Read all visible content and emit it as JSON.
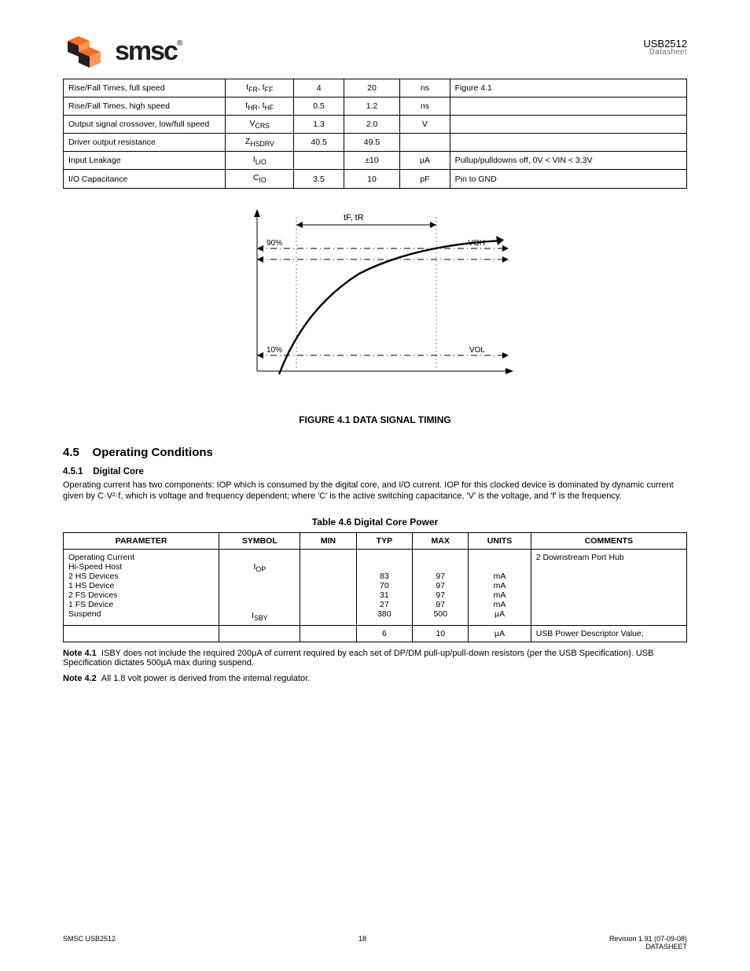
{
  "header": {
    "logo_text": "smsc",
    "reg_mark": "®",
    "doc_id": "USB2512",
    "datasheet_label": "Datasheet",
    "logo_colors": {
      "orange": "#f37021",
      "black": "#231f20"
    }
  },
  "table1": {
    "cols": {
      "w_param": "26%",
      "w_sym": "11%",
      "w_min": "8%",
      "w_max": "9%",
      "w_units": "8%",
      "w_comments": "38%"
    },
    "rows": [
      [
        "Rise/Fall Times, full speed",
        "tFR, tFF",
        "4",
        "20",
        "ns",
        "Figure 4.1"
      ],
      [
        "Rise/Fall Times, high speed",
        "tHR, tHF",
        "0.5",
        "1.2",
        "ns",
        ""
      ],
      [
        "Output signal crossover, low/full speed",
        "VCRS",
        "1.3",
        "2.0",
        "V",
        ""
      ],
      [
        "Driver output resistance",
        "ZHSDRV",
        "40.5",
        "49.5",
        "",
        ""
      ],
      [
        "Input Leakage",
        "ILIO",
        "",
        "±10",
        "µA",
        "Pullup/pulldowns off, 0V < VIN < 3.3V"
      ],
      [
        "I/O Capacitance",
        "CIO",
        "3.5",
        "10",
        "pF",
        "Pin to GND"
      ]
    ]
  },
  "figure": {
    "caption": "FIGURE 4.1 DATA SIGNAL TIMING",
    "axes": {
      "y_label": "",
      "x_label": ""
    },
    "markers": {
      "top": "tF, tR",
      "v90": "90%",
      "voh": "VOH",
      "v10": "10%",
      "vol": "VOL"
    },
    "colors": {
      "axis": "#000000",
      "dashdot": "#000000",
      "guide": "#888888",
      "curve": "#000000"
    }
  },
  "section": {
    "head_num": "4.5",
    "head_title": "Operating Conditions",
    "sub1_num": "4.5.1",
    "sub1_title": "Digital Core",
    "sub1_body": "Operating current has two components: IOP which is consumed by the digital core, and I/O current. IOP for this clocked device is dominated by dynamic current given by C·V²·f, which is voltage and frequency dependent; where 'C' is the active switching capacitance, 'V' is the voltage, and 'f' is the frequency."
  },
  "table2": {
    "caption": "Table 4.6 Digital Core Power",
    "headers": [
      "PARAMETER",
      "SYMBOL",
      "MIN",
      "TYP",
      "MAX",
      "UNITS",
      "COMMENTS"
    ],
    "cols": {
      "w_param": "25%",
      "w_sym": "13%",
      "w_min": "9%",
      "w_typ": "9%",
      "w_max": "9%",
      "w_units": "10%",
      "w_comments": "25%"
    },
    "rows": [
      {
        "param_lines": [
          "Operating Current",
          "Hi-Speed Host",
          "2 HS Devices",
          "1 HS Device",
          "2 FS Devices",
          "1 FS Device",
          "Suspend"
        ],
        "sym_lines": [
          "",
          "I_OP",
          "",
          "",
          "",
          "",
          "I_SBY"
        ],
        "min": [
          "",
          "",
          "",
          "",
          "",
          "",
          ""
        ],
        "typ": [
          "",
          "",
          "83",
          "70",
          "31",
          "27",
          "380"
        ],
        "max": [
          "",
          "",
          "97",
          "97",
          "97",
          "97",
          "500"
        ],
        "units": [
          "",
          "",
          "mA",
          "mA",
          "mA",
          "mA",
          "µA"
        ],
        "comments": [
          "2 Downstream Port Hub",
          "",
          "",
          "",
          "",
          "",
          ""
        ]
      },
      {
        "param_lines": [
          ""
        ],
        "sym_lines": [
          ""
        ],
        "min": [
          ""
        ],
        "typ": [
          "6"
        ],
        "max": [
          "10"
        ],
        "units": [
          "µA"
        ],
        "comments": [
          "USB Power Descriptor Value;"
        ]
      }
    ]
  },
  "notes": {
    "note1_label": "Note 4.1",
    "note1_text": "ISBY does not include the required 200µA of current required by each set of DP/DM pull-up/pull-down resistors (per the USB Specification). USB Specification dictates 500µA max during suspend.",
    "note2_label": "Note 4.2",
    "note2_text": "All 1.8 volt power is derived from the internal regulator."
  },
  "footer": {
    "left": "SMSC USB2512",
    "mid": "18",
    "right_top": "Revision 1.91 (07-09-08)",
    "right_bottom": "DATASHEET"
  }
}
